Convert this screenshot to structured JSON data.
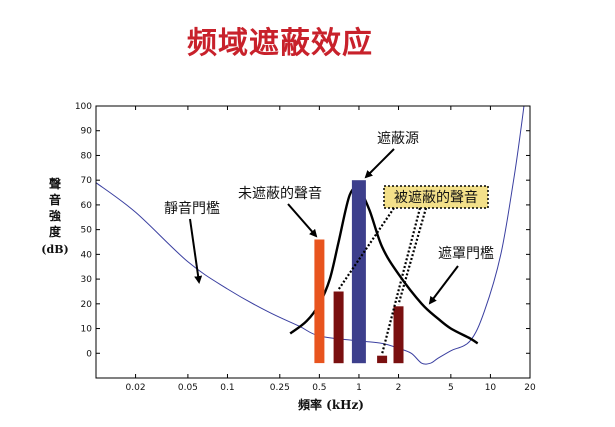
{
  "page": {
    "title": "频域遮蔽效应"
  },
  "chart_data": {
    "type": "bar",
    "title": "",
    "xlabel": "頻率 (kHz)",
    "ylabel_chars": [
      "聲",
      "音",
      "強",
      "度"
    ],
    "ylabel_unit": "(dB)",
    "x_scale": "log",
    "xlim": [
      0.01,
      20
    ],
    "ylim": [
      -10,
      100
    ],
    "x_ticks": [
      {
        "value": 0.02,
        "label": "0.02"
      },
      {
        "value": 0.05,
        "label": "0.05"
      },
      {
        "value": 0.1,
        "label": "0.1"
      },
      {
        "value": 0.25,
        "label": "0.25"
      },
      {
        "value": 0.5,
        "label": "0.5"
      },
      {
        "value": 1,
        "label": "1"
      },
      {
        "value": 2,
        "label": "2"
      },
      {
        "value": 5,
        "label": "5"
      },
      {
        "value": 10,
        "label": "10"
      },
      {
        "value": 20,
        "label": "20"
      }
    ],
    "y_ticks": [
      0,
      10,
      20,
      30,
      40,
      50,
      60,
      70,
      80,
      90,
      100
    ],
    "grid": false,
    "bars": [
      {
        "x": 0.5,
        "value": 46,
        "color": "#e8541e"
      },
      {
        "x": 0.7,
        "value": 25,
        "color": "#7a1010"
      },
      {
        "x": 1.0,
        "value": 70,
        "color": "#3d3f8c"
      },
      {
        "x": 1.5,
        "value": -1,
        "color": "#7a1010"
      },
      {
        "x": 2.0,
        "value": 19,
        "color": "#7a1010"
      }
    ],
    "quiet_threshold": {
      "color": "#3a3fa0",
      "points": [
        [
          0.01,
          69
        ],
        [
          0.02,
          57
        ],
        [
          0.05,
          37
        ],
        [
          0.1,
          26
        ],
        [
          0.2,
          17
        ],
        [
          0.35,
          11
        ],
        [
          0.5,
          7
        ],
        [
          1,
          5
        ],
        [
          1.5,
          4
        ],
        [
          2,
          2
        ],
        [
          2.5,
          0
        ],
        [
          3,
          -4
        ],
        [
          3.5,
          -4
        ],
        [
          4,
          -2
        ],
        [
          5,
          1
        ],
        [
          7,
          5
        ],
        [
          9,
          17
        ],
        [
          12,
          40
        ],
        [
          15,
          70
        ],
        [
          17,
          90
        ],
        [
          19,
          110
        ]
      ]
    },
    "masking_threshold": {
      "color": "#000000",
      "points": [
        [
          0.3,
          8
        ],
        [
          0.4,
          13
        ],
        [
          0.5,
          20
        ],
        [
          0.6,
          30
        ],
        [
          0.7,
          45
        ],
        [
          0.85,
          64
        ],
        [
          1.0,
          66
        ],
        [
          1.2,
          58
        ],
        [
          1.5,
          43
        ],
        [
          2,
          32
        ],
        [
          3,
          20
        ],
        [
          4,
          14
        ],
        [
          5,
          10
        ],
        [
          7,
          6
        ],
        [
          8,
          4
        ]
      ]
    },
    "annotations": {
      "quiet_threshold_label": "靜音門檻",
      "unmasked_label": "未遮蔽的聲音",
      "masker_label": "遮蔽源",
      "masked_label": "被遮蔽的聲音",
      "masking_threshold_label": "遮罩門檻"
    },
    "masked_box_color": "#f3e08a"
  }
}
